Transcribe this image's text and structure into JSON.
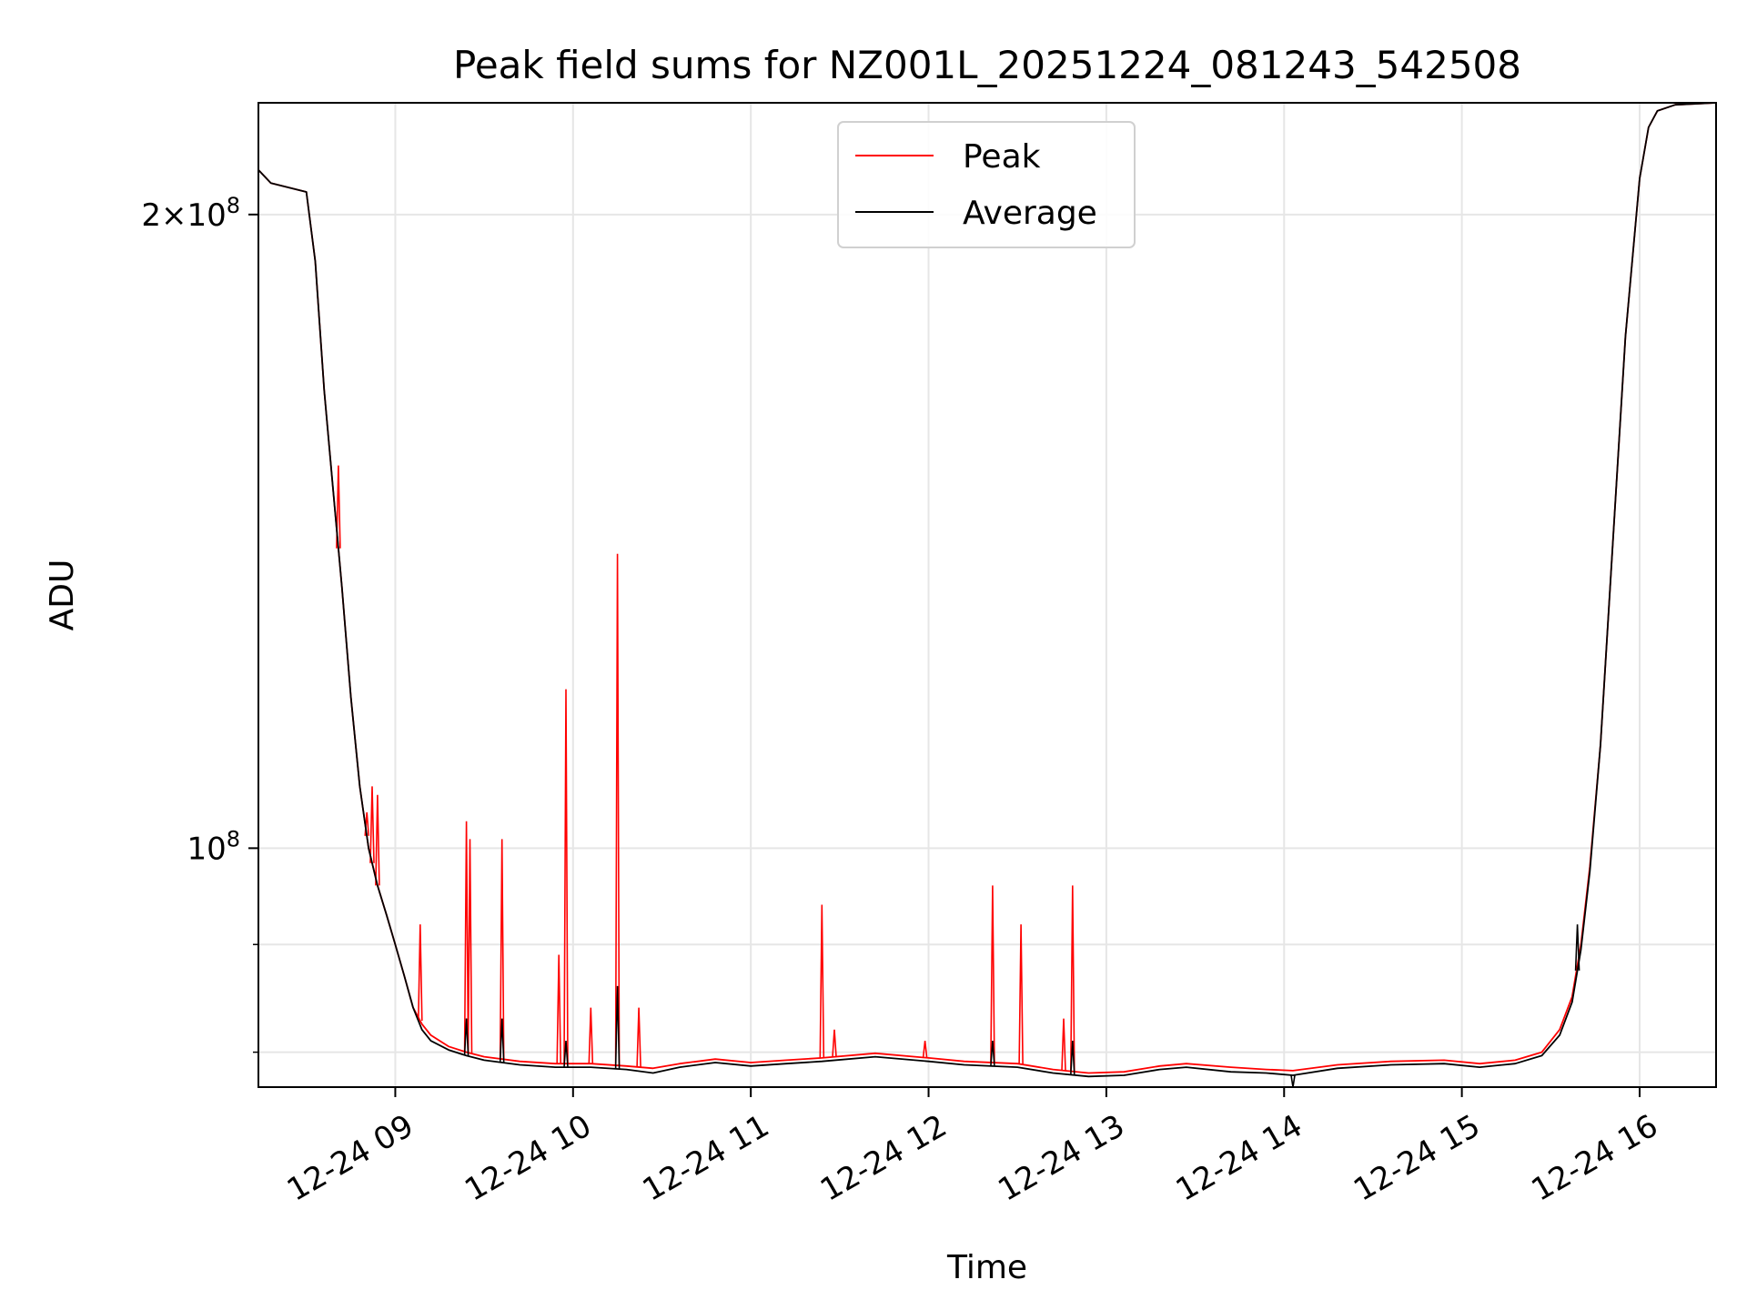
{
  "chart_data": {
    "type": "line",
    "title": "Peak field sums for NZ001L_20251224_081243_542508",
    "xlabel": "Time",
    "ylabel": "ADU",
    "yscale": "log",
    "grid": true,
    "legend_position": "upper center",
    "xlim_hours": [
      8.23,
      16.43
    ],
    "ylim": [
      77000000,
      226000000
    ],
    "x_ticks": [
      {
        "hour": 9,
        "label": "12-24 09"
      },
      {
        "hour": 10,
        "label": "12-24 10"
      },
      {
        "hour": 11,
        "label": "12-24 11"
      },
      {
        "hour": 12,
        "label": "12-24 12"
      },
      {
        "hour": 13,
        "label": "12-24 13"
      },
      {
        "hour": 14,
        "label": "12-24 14"
      },
      {
        "hour": 15,
        "label": "12-24 15"
      },
      {
        "hour": 16,
        "label": "12-24 16"
      }
    ],
    "y_major_ticks": [
      {
        "value": 100000000,
        "base": "10",
        "exp": "8"
      },
      {
        "value": 200000000,
        "mant": "2",
        "base": "10",
        "exp": "8"
      }
    ],
    "y_minor_ticks": [
      90000000,
      80000000
    ],
    "colors": {
      "peak": "#ff0000",
      "average": "#000000"
    },
    "series": [
      {
        "name": "Peak",
        "key": "peak",
        "points": [
          [
            8.23,
            210000000
          ],
          [
            8.3,
            207000000
          ],
          [
            8.4,
            206000000
          ],
          [
            8.5,
            205000000
          ],
          [
            8.55,
            190000000
          ],
          [
            8.6,
            165000000
          ],
          [
            8.65,
            148000000
          ],
          [
            8.7,
            133000000
          ],
          [
            8.75,
            118000000
          ],
          [
            8.8,
            107000000
          ],
          [
            8.85,
            100000000
          ],
          [
            8.9,
            96000000
          ],
          [
            8.95,
            93000000
          ],
          [
            9.0,
            90000000
          ],
          [
            9.05,
            87000000
          ],
          [
            9.1,
            84000000
          ],
          [
            9.15,
            82500000
          ],
          [
            9.2,
            81500000
          ],
          [
            9.3,
            80500000
          ],
          [
            9.4,
            80000000
          ],
          [
            9.5,
            79600000
          ],
          [
            9.7,
            79200000
          ],
          [
            9.9,
            79000000
          ],
          [
            10.1,
            79000000
          ],
          [
            10.3,
            78800000
          ],
          [
            10.45,
            78600000
          ],
          [
            10.6,
            79000000
          ],
          [
            10.8,
            79400000
          ],
          [
            11.0,
            79100000
          ],
          [
            11.2,
            79300000
          ],
          [
            11.4,
            79500000
          ],
          [
            11.7,
            79900000
          ],
          [
            12.0,
            79500000
          ],
          [
            12.2,
            79200000
          ],
          [
            12.5,
            79000000
          ],
          [
            12.7,
            78500000
          ],
          [
            12.9,
            78200000
          ],
          [
            13.1,
            78300000
          ],
          [
            13.3,
            78800000
          ],
          [
            13.45,
            79000000
          ],
          [
            13.7,
            78700000
          ],
          [
            13.9,
            78500000
          ],
          [
            14.05,
            78400000
          ],
          [
            14.3,
            78900000
          ],
          [
            14.6,
            79200000
          ],
          [
            14.9,
            79300000
          ],
          [
            15.1,
            79000000
          ],
          [
            15.3,
            79300000
          ],
          [
            15.45,
            80000000
          ],
          [
            15.55,
            82000000
          ],
          [
            15.62,
            85000000
          ],
          [
            15.67,
            90000000
          ],
          [
            15.72,
            98000000
          ],
          [
            15.78,
            112000000
          ],
          [
            15.85,
            140000000
          ],
          [
            15.92,
            175000000
          ],
          [
            16.0,
            208000000
          ],
          [
            16.05,
            220000000
          ],
          [
            16.1,
            224000000
          ],
          [
            16.2,
            225500000
          ],
          [
            16.43,
            226000000
          ]
        ],
        "spikes": [
          [
            8.68,
            152000000
          ],
          [
            8.84,
            104000000
          ],
          [
            8.87,
            107000000
          ],
          [
            8.9,
            106000000
          ],
          [
            9.14,
            92000000
          ],
          [
            9.4,
            103000000
          ],
          [
            9.42,
            101000000
          ],
          [
            9.6,
            101000000
          ],
          [
            9.92,
            89000000
          ],
          [
            9.96,
            119000000
          ],
          [
            10.1,
            84000000
          ],
          [
            10.25,
            138000000
          ],
          [
            10.37,
            84000000
          ],
          [
            11.4,
            94000000
          ],
          [
            11.47,
            82000000
          ],
          [
            11.98,
            81000000
          ],
          [
            12.36,
            96000000
          ],
          [
            12.52,
            92000000
          ],
          [
            12.76,
            83000000
          ],
          [
            12.81,
            96000000
          ]
        ]
      },
      {
        "name": "Average",
        "key": "average",
        "points": [
          [
            8.23,
            210000000
          ],
          [
            8.3,
            207000000
          ],
          [
            8.4,
            206000000
          ],
          [
            8.5,
            205000000
          ],
          [
            8.55,
            190000000
          ],
          [
            8.6,
            165000000
          ],
          [
            8.65,
            148000000
          ],
          [
            8.7,
            133000000
          ],
          [
            8.75,
            118000000
          ],
          [
            8.8,
            107000000
          ],
          [
            8.85,
            100000000
          ],
          [
            8.9,
            96000000
          ],
          [
            8.95,
            93000000
          ],
          [
            9.0,
            90000000
          ],
          [
            9.05,
            87000000
          ],
          [
            9.1,
            84000000
          ],
          [
            9.15,
            82000000
          ],
          [
            9.2,
            81000000
          ],
          [
            9.3,
            80200000
          ],
          [
            9.4,
            79700000
          ],
          [
            9.5,
            79300000
          ],
          [
            9.7,
            78900000
          ],
          [
            9.9,
            78700000
          ],
          [
            10.1,
            78700000
          ],
          [
            10.3,
            78500000
          ],
          [
            10.45,
            78200000
          ],
          [
            10.6,
            78700000
          ],
          [
            10.8,
            79100000
          ],
          [
            11.0,
            78800000
          ],
          [
            11.2,
            79000000
          ],
          [
            11.4,
            79200000
          ],
          [
            11.7,
            79600000
          ],
          [
            12.0,
            79200000
          ],
          [
            12.2,
            78900000
          ],
          [
            12.5,
            78700000
          ],
          [
            12.7,
            78200000
          ],
          [
            12.9,
            77900000
          ],
          [
            13.1,
            78000000
          ],
          [
            13.3,
            78500000
          ],
          [
            13.45,
            78700000
          ],
          [
            13.7,
            78300000
          ],
          [
            13.9,
            78200000
          ],
          [
            14.05,
            78000000
          ],
          [
            14.3,
            78600000
          ],
          [
            14.6,
            78900000
          ],
          [
            14.9,
            79000000
          ],
          [
            15.1,
            78700000
          ],
          [
            15.3,
            79000000
          ],
          [
            15.45,
            79700000
          ],
          [
            15.55,
            81500000
          ],
          [
            15.62,
            84500000
          ],
          [
            15.67,
            89500000
          ],
          [
            15.72,
            97500000
          ],
          [
            15.78,
            112000000
          ],
          [
            15.85,
            140000000
          ],
          [
            15.92,
            175000000
          ],
          [
            16.0,
            208000000
          ],
          [
            16.05,
            220000000
          ],
          [
            16.1,
            224000000
          ],
          [
            16.2,
            225500000
          ],
          [
            16.43,
            226000000
          ]
        ],
        "spikes": [
          [
            9.4,
            83000000
          ],
          [
            9.6,
            83000000
          ],
          [
            9.96,
            81000000
          ],
          [
            10.25,
            86000000
          ],
          [
            12.36,
            81000000
          ],
          [
            12.81,
            81000000
          ],
          [
            14.05,
            77000000
          ],
          [
            15.65,
            92000000
          ]
        ]
      }
    ]
  }
}
